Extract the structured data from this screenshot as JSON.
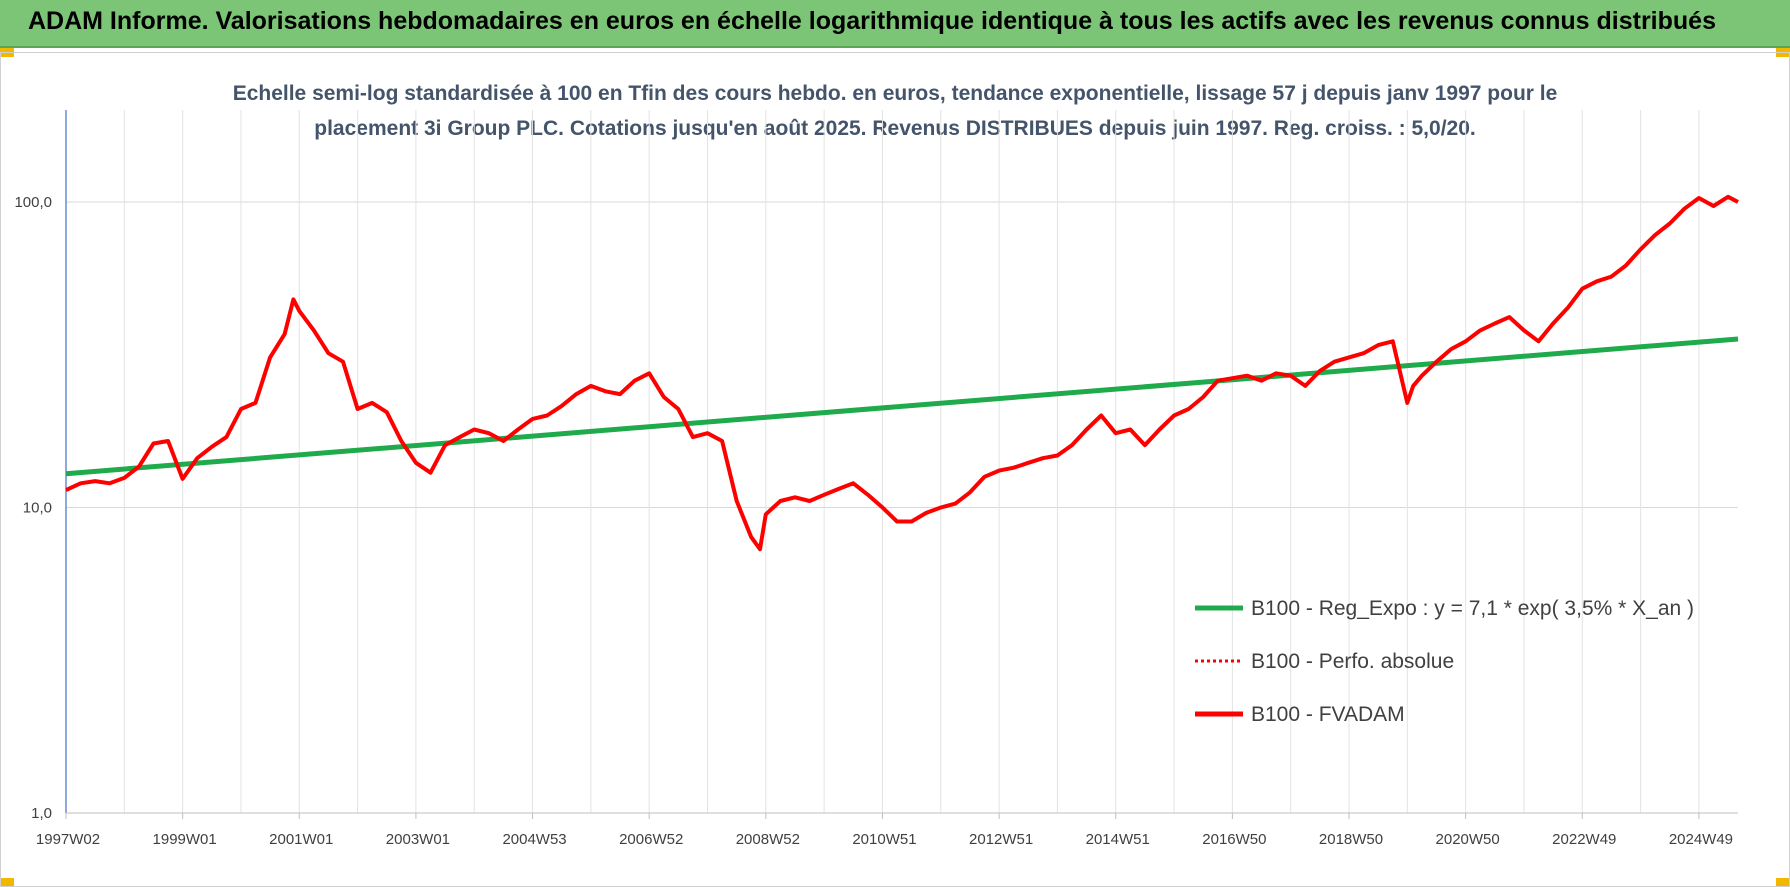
{
  "header": {
    "title": "ADAM Informe. Valorisations hebdomadaires en euros en échelle logarithmique identique à tous les actifs avec les revenus connus distribués",
    "accent_color": "#7cc576",
    "corner_color": "#f2b800"
  },
  "chart_data": {
    "type": "line",
    "title_line1": "Echelle semi-log standardisée à 100 en Tfin des cours hebdo. en euros, tendance exponentielle, lissage 57 j depuis janv 1997 pour le",
    "title_line2": "placement 3i Group PLC. Cotations jusqu'en août 2025. Revenus DISTRIBUES depuis juin 1997. Reg. croiss. : 5,0/20.",
    "y_scale": "log",
    "ylim": [
      1,
      200
    ],
    "y_ticks": [
      {
        "value": 1,
        "label": "1,0"
      },
      {
        "value": 10,
        "label": "10,0"
      },
      {
        "value": 100,
        "label": "100,0"
      }
    ],
    "x_range": [
      1997.0,
      2025.67
    ],
    "x_ticks": [
      {
        "value": 1997.0,
        "label": "1997W02"
      },
      {
        "value": 1999.0,
        "label": "1999W01"
      },
      {
        "value": 2001.0,
        "label": "2001W01"
      },
      {
        "value": 2003.0,
        "label": "2003W01"
      },
      {
        "value": 2005.0,
        "label": "2004W53"
      },
      {
        "value": 2007.0,
        "label": "2006W52"
      },
      {
        "value": 2009.0,
        "label": "2008W52"
      },
      {
        "value": 2011.0,
        "label": "2010W51"
      },
      {
        "value": 2013.0,
        "label": "2012W51"
      },
      {
        "value": 2015.0,
        "label": "2014W51"
      },
      {
        "value": 2017.0,
        "label": "2016W50"
      },
      {
        "value": 2019.0,
        "label": "2018W50"
      },
      {
        "value": 2021.0,
        "label": "2020W50"
      },
      {
        "value": 2023.0,
        "label": "2022W49"
      },
      {
        "value": 2025.0,
        "label": "2024W49"
      }
    ],
    "grid": true,
    "legend_position": "bottom-right",
    "series": [
      {
        "name": "B100 - Reg_Expo : y = 7,1 * exp( 3,5% *  X_an )",
        "color": "#1faa4b",
        "style": "solid",
        "x": [
          1997.0,
          2025.67
        ],
        "y": [
          12.9,
          35.6
        ]
      },
      {
        "name": "B100 - Perfo. absolue",
        "color": "#ff0000",
        "style": "dotted",
        "x": [],
        "y": []
      },
      {
        "name": "B100 - FVADAM",
        "color": "#ff0000",
        "style": "solid",
        "x": [
          1997.0,
          1997.25,
          1997.5,
          1997.75,
          1998.0,
          1998.25,
          1998.5,
          1998.75,
          1999.0,
          1999.25,
          1999.5,
          1999.75,
          2000.0,
          2000.25,
          2000.5,
          2000.75,
          2000.9,
          2001.0,
          2001.25,
          2001.5,
          2001.75,
          2002.0,
          2002.25,
          2002.5,
          2002.75,
          2003.0,
          2003.25,
          2003.5,
          2003.75,
          2004.0,
          2004.25,
          2004.5,
          2004.75,
          2005.0,
          2005.25,
          2005.5,
          2005.75,
          2006.0,
          2006.25,
          2006.5,
          2006.75,
          2007.0,
          2007.25,
          2007.5,
          2007.75,
          2008.0,
          2008.25,
          2008.5,
          2008.75,
          2008.9,
          2009.0,
          2009.25,
          2009.5,
          2009.75,
          2010.0,
          2010.25,
          2010.5,
          2010.75,
          2011.0,
          2011.25,
          2011.5,
          2011.75,
          2012.0,
          2012.25,
          2012.5,
          2012.75,
          2013.0,
          2013.25,
          2013.5,
          2013.75,
          2014.0,
          2014.25,
          2014.5,
          2014.75,
          2015.0,
          2015.25,
          2015.5,
          2015.75,
          2016.0,
          2016.25,
          2016.5,
          2016.75,
          2017.0,
          2017.25,
          2017.5,
          2017.75,
          2018.0,
          2018.25,
          2018.5,
          2018.75,
          2019.0,
          2019.25,
          2019.5,
          2019.75,
          2020.0,
          2020.1,
          2020.25,
          2020.5,
          2020.75,
          2021.0,
          2021.25,
          2021.5,
          2021.75,
          2022.0,
          2022.25,
          2022.5,
          2022.75,
          2023.0,
          2023.25,
          2023.5,
          2023.75,
          2024.0,
          2024.25,
          2024.5,
          2024.75,
          2025.0,
          2025.25,
          2025.5,
          2025.67
        ],
        "y": [
          11.4,
          12.0,
          12.2,
          12.0,
          12.5,
          13.6,
          16.2,
          16.5,
          12.4,
          14.5,
          15.8,
          17.0,
          21.0,
          22.0,
          31.0,
          37.0,
          48.0,
          44.0,
          38.0,
          32.0,
          30.0,
          21.0,
          22.0,
          20.5,
          16.5,
          14.0,
          13.0,
          16.0,
          17.0,
          18.0,
          17.5,
          16.5,
          18.0,
          19.5,
          20.0,
          21.5,
          23.5,
          25.0,
          24.0,
          23.5,
          26.0,
          27.5,
          23.0,
          21.0,
          17.0,
          17.5,
          16.5,
          10.5,
          8.0,
          7.3,
          9.5,
          10.5,
          10.8,
          10.5,
          11.0,
          11.5,
          12.0,
          11.0,
          10.0,
          9.0,
          9.0,
          9.6,
          10.0,
          10.3,
          11.2,
          12.6,
          13.2,
          13.5,
          14.0,
          14.5,
          14.8,
          16.0,
          18.0,
          20.0,
          17.5,
          18.0,
          16.0,
          18.0,
          20.0,
          21.0,
          23.0,
          26.0,
          26.5,
          27.0,
          26.0,
          27.5,
          27.0,
          25.0,
          28.0,
          30.0,
          31.0,
          32.0,
          34.0,
          35.0,
          22.0,
          25.0,
          27.0,
          30.0,
          33.0,
          35.0,
          38.0,
          40.0,
          42.0,
          38.0,
          35.0,
          40.0,
          45.0,
          52.0,
          55.0,
          57.0,
          62.0,
          70.0,
          78.0,
          85.0,
          95.0,
          103.0,
          97.0,
          104.0,
          100.0
        ]
      }
    ]
  }
}
